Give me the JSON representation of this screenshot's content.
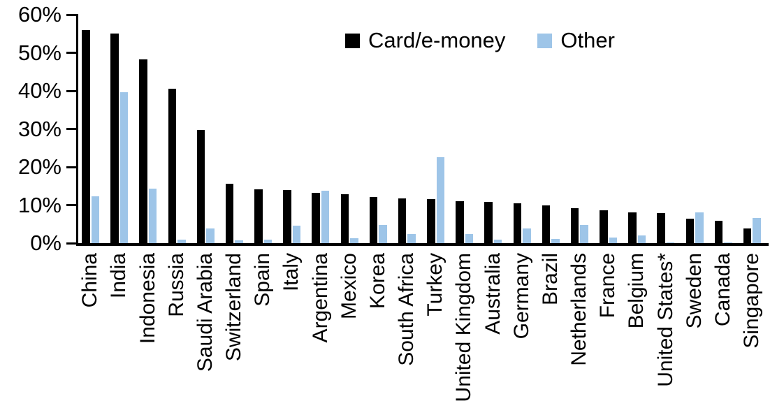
{
  "chart_data": {
    "type": "bar",
    "title": "",
    "xlabel": "",
    "ylabel": "",
    "ylim": [
      0,
      60
    ],
    "ytick_labels": [
      "0%",
      "10%",
      "20%",
      "30%",
      "40%",
      "50%",
      "60%"
    ],
    "grid": false,
    "legend_position": "top-center",
    "categories": [
      "China",
      "India",
      "Indonesia",
      "Russia",
      "Saudi Arabia",
      "Switzerland",
      "Spain",
      "Italy",
      "Argentina",
      "Mexico",
      "Korea",
      "South Africa",
      "Turkey",
      "United Kingdom",
      "Australia",
      "Germany",
      "Brazil",
      "Netherlands",
      "France",
      "Belgium",
      "United States*",
      "Sweden",
      "Canada",
      "Singapore"
    ],
    "series": [
      {
        "name": "Card/e-money",
        "color": "#000000",
        "values": [
          56.0,
          55.0,
          48.3,
          40.5,
          29.8,
          15.6,
          14.1,
          14.0,
          13.3,
          12.9,
          12.1,
          11.8,
          11.6,
          11.0,
          10.8,
          10.5,
          9.9,
          9.2,
          8.6,
          8.1,
          7.8,
          6.5,
          5.9,
          3.9
        ]
      },
      {
        "name": "Other",
        "color": "#9EC5E8",
        "values": [
          12.3,
          39.7,
          14.4,
          0.9,
          3.9,
          0.7,
          0.9,
          4.5,
          13.8,
          1.3,
          4.7,
          2.3,
          22.5,
          2.3,
          0.9,
          3.8,
          1.1,
          4.8,
          1.5,
          2.0,
          0.2,
          8.0,
          0.1,
          6.6
        ]
      }
    ]
  }
}
